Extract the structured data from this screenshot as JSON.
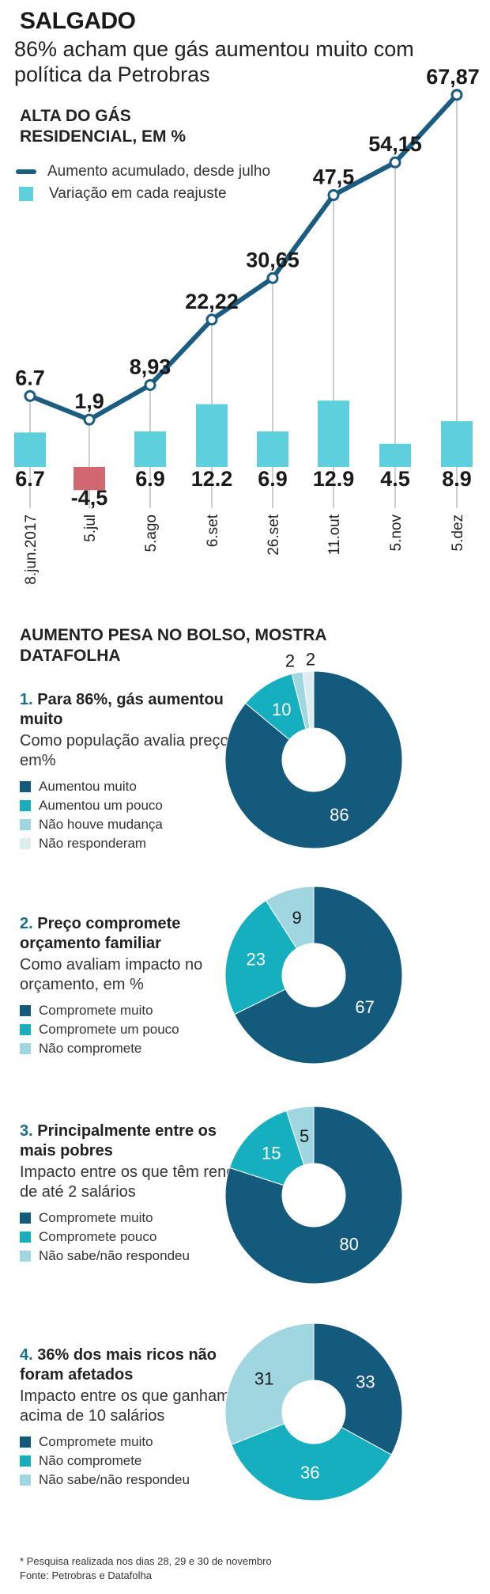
{
  "header": {
    "kicker": "SALGADO",
    "headline": "86% acham que gás aumentou muito com política da Petrobras"
  },
  "chart_data": [
    {
      "type": "bar+line",
      "title": "ALTA DO GÁS RESIDENCIAL, EM %",
      "categories": [
        "8.jun.2017",
        "5.jul",
        "5.ago",
        "6.set",
        "26.set",
        "11.out",
        "5.nov",
        "5.dez"
      ],
      "series": [
        {
          "name": "Aumento acumulado, desde julho",
          "kind": "line",
          "color": "#1b5d80",
          "values": [
            6.7,
            1.9,
            8.93,
            22.22,
            30.65,
            47.5,
            54.15,
            67.87
          ],
          "labels": [
            "6.7",
            "1,9",
            "8,93",
            "22,22",
            "30,65",
            "47,5",
            "54,15",
            "67,87"
          ]
        },
        {
          "name": "Variação em cada reajuste",
          "kind": "bar",
          "color": "#5ecfdc",
          "negative_color": "#d2676f",
          "values": [
            6.7,
            -4.5,
            6.9,
            12.2,
            6.9,
            12.9,
            4.5,
            8.9
          ],
          "labels": [
            "6.7",
            "-4,5",
            "6.9",
            "12.2",
            "6.9",
            "12.9",
            "4.5",
            "8.9"
          ]
        }
      ]
    },
    {
      "type": "pie",
      "section": "AUMENTO PESA NO BOLSO, MOSTRA DATAFOLHA",
      "num": "1.",
      "title": "Para 86%, gás aumentou muito",
      "subtitle": "Como população avalia preço, em%",
      "slices": [
        {
          "label": "Aumentou muito",
          "value": 86,
          "color": "#145a7c"
        },
        {
          "label": "Aumentou um pouco",
          "value": 10,
          "color": "#16afbf"
        },
        {
          "label": "Não houve mudança",
          "value": 2,
          "color": "#9fd6df"
        },
        {
          "label": "Não responderam",
          "value": 2,
          "color": "#dcedf0"
        }
      ]
    },
    {
      "type": "pie",
      "num": "2.",
      "title": "Preço compromete orçamento familiar",
      "subtitle": "Como avaliam impacto no orçamento, em %",
      "slices": [
        {
          "label": "Compromete muito",
          "value": 67,
          "color": "#145a7c"
        },
        {
          "label": "Compromete um pouco",
          "value": 23,
          "color": "#16afbf"
        },
        {
          "label": "Não compromete",
          "value": 9,
          "color": "#9fd6df"
        }
      ]
    },
    {
      "type": "pie",
      "num": "3.",
      "title": "Principalmente entre os mais pobres",
      "subtitle": "Impacto entre os que têm renda de até 2 salários",
      "slices": [
        {
          "label": "Compromete muito",
          "value": 80,
          "color": "#145a7c"
        },
        {
          "label": "Compromete pouco",
          "value": 15,
          "color": "#16afbf"
        },
        {
          "label": "Não sabe/não respondeu",
          "value": 5,
          "color": "#9fd6df"
        }
      ]
    },
    {
      "type": "pie",
      "num": "4.",
      "title": "36% dos mais ricos não foram afetados",
      "subtitle": "Impacto entre os que ganham acima de 10 salários",
      "slices": [
        {
          "label": "Compromete muito",
          "value": 33,
          "color": "#145a7c"
        },
        {
          "label": "Não compromete",
          "value": 36,
          "color": "#16afbf"
        },
        {
          "label": "Não sabe/não respondeu",
          "value": 31,
          "color": "#9fd6df"
        }
      ]
    }
  ],
  "footnote": {
    "note": "* Pesquisa realizada nos dias 28, 29 e 30 de novembro",
    "source": "Fonte: Petrobras e Datafolha"
  }
}
